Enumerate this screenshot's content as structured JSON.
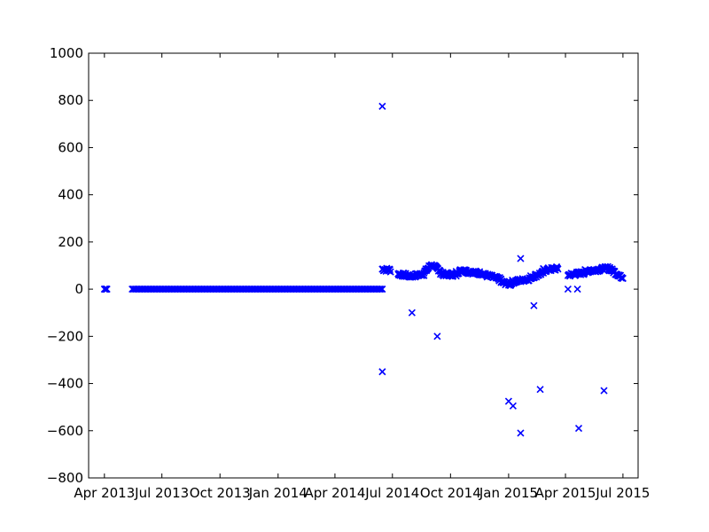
{
  "chart_data": {
    "type": "scatter",
    "title": "",
    "xlabel": "",
    "ylabel": "",
    "marker": "x",
    "color": "#0000ff",
    "grid": false,
    "xlim": [
      "2013-03-07",
      "2015-07-25"
    ],
    "ylim": [
      -800,
      1000
    ],
    "yticks": [
      -800,
      -600,
      -400,
      -200,
      0,
      200,
      400,
      600,
      800,
      1000
    ],
    "ytick_labels": [
      "−800",
      "−600",
      "−400",
      "−200",
      "0",
      "200",
      "400",
      "600",
      "800",
      "1000"
    ],
    "xticks": [
      "2013-04-01",
      "2013-07-01",
      "2013-10-01",
      "2014-01-01",
      "2014-04-01",
      "2014-07-01",
      "2014-10-01",
      "2015-01-01",
      "2015-04-01",
      "2015-07-01"
    ],
    "xtick_labels": [
      "Apr 2013",
      "Jul 2013",
      "Oct 2013",
      "Jan 2014",
      "Apr 2014",
      "Jul 2014",
      "Oct 2014",
      "Jan 2015",
      "Apr 2015",
      "Jul 2015"
    ],
    "segments": [
      {
        "start": "2013-04-01",
        "end": "2013-04-05",
        "y": [
          0,
          0
        ],
        "step_days": 1
      },
      {
        "start": "2013-05-15",
        "end": "2014-06-15",
        "y": [
          0,
          0
        ],
        "step_days": 2
      },
      {
        "start": "2014-06-15",
        "end": "2014-06-28",
        "y": [
          85,
          80
        ],
        "step_days": 1,
        "jitter": 8
      },
      {
        "start": "2014-07-10",
        "end": "2014-07-30",
        "y": [
          65,
          55
        ],
        "step_days": 1,
        "jitter": 8
      },
      {
        "start": "2014-07-30",
        "end": "2014-08-20",
        "y": [
          55,
          65
        ],
        "step_days": 1,
        "jitter": 8
      },
      {
        "start": "2014-08-20",
        "end": "2014-09-01",
        "y": [
          70,
          105
        ],
        "step_days": 1,
        "jitter": 8
      },
      {
        "start": "2014-09-01",
        "end": "2014-09-15",
        "y": [
          100,
          80
        ],
        "step_days": 1,
        "jitter": 8
      },
      {
        "start": "2014-09-15",
        "end": "2014-10-10",
        "y": [
          65,
          60
        ],
        "step_days": 1,
        "jitter": 8
      },
      {
        "start": "2014-10-10",
        "end": "2014-10-25",
        "y": [
          70,
          85
        ],
        "step_days": 1,
        "jitter": 8
      },
      {
        "start": "2014-10-25",
        "end": "2014-11-25",
        "y": [
          75,
          65
        ],
        "step_days": 1,
        "jitter": 8
      },
      {
        "start": "2014-11-25",
        "end": "2014-12-20",
        "y": [
          60,
          40
        ],
        "step_days": 1,
        "jitter": 8
      },
      {
        "start": "2014-12-20",
        "end": "2015-01-05",
        "y": [
          30,
          20
        ],
        "step_days": 1,
        "jitter": 8
      },
      {
        "start": "2015-01-05",
        "end": "2015-02-05",
        "y": [
          30,
          45
        ],
        "step_days": 1,
        "jitter": 8
      },
      {
        "start": "2015-02-05",
        "end": "2015-02-25",
        "y": [
          50,
          70
        ],
        "step_days": 1,
        "jitter": 8
      },
      {
        "start": "2015-02-25",
        "end": "2015-03-20",
        "y": [
          80,
          88
        ],
        "step_days": 1,
        "jitter": 8
      },
      {
        "start": "2015-04-05",
        "end": "2015-05-01",
        "y": [
          60,
          70
        ],
        "step_days": 1,
        "jitter": 8
      },
      {
        "start": "2015-05-01",
        "end": "2015-06-10",
        "y": [
          75,
          90
        ],
        "step_days": 1,
        "jitter": 8
      },
      {
        "start": "2015-06-10",
        "end": "2015-06-25",
        "y": [
          85,
          60
        ],
        "step_days": 1,
        "jitter": 8
      },
      {
        "start": "2015-06-25",
        "end": "2015-07-01",
        "y": [
          55,
          50
        ],
        "step_days": 1,
        "jitter": 6
      }
    ],
    "points": [
      {
        "x": "2014-06-15",
        "y": 775
      },
      {
        "x": "2014-06-15",
        "y": -350
      },
      {
        "x": "2014-08-01",
        "y": -100
      },
      {
        "x": "2014-09-10",
        "y": -200
      },
      {
        "x": "2015-01-01",
        "y": -475
      },
      {
        "x": "2015-01-08",
        "y": -495
      },
      {
        "x": "2015-01-20",
        "y": -610
      },
      {
        "x": "2015-01-20",
        "y": 130
      },
      {
        "x": "2015-02-10",
        "y": -70
      },
      {
        "x": "2015-02-20",
        "y": -425
      },
      {
        "x": "2015-04-05",
        "y": 0
      },
      {
        "x": "2015-04-20",
        "y": 0
      },
      {
        "x": "2015-04-22",
        "y": -590
      },
      {
        "x": "2015-06-01",
        "y": -430
      }
    ]
  }
}
